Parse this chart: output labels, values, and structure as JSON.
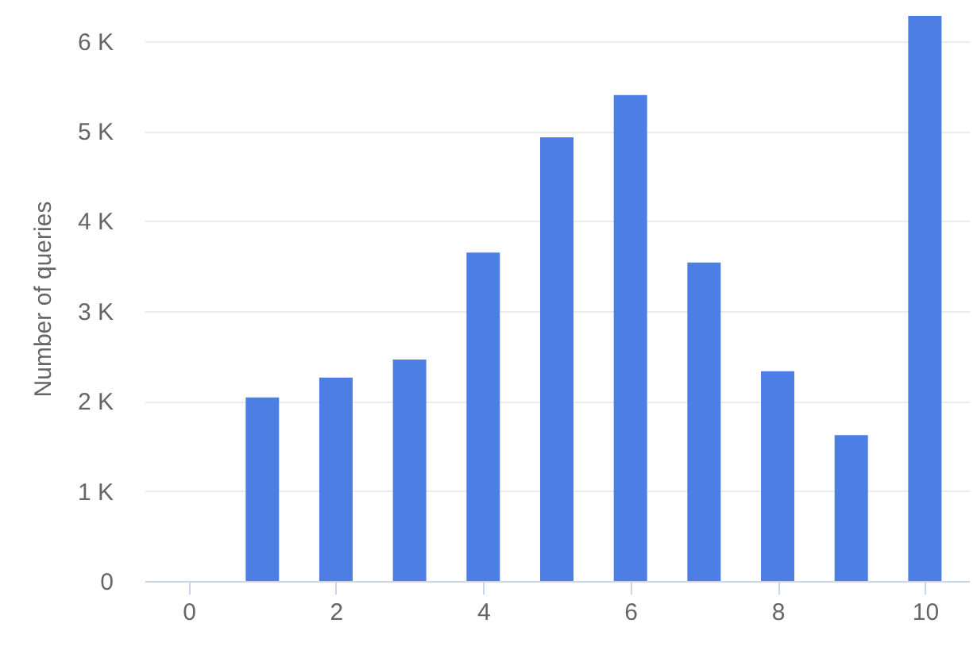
{
  "chart_data": {
    "type": "bar",
    "ylabel": "Number of queries",
    "x": [
      0,
      1,
      2,
      3,
      4,
      5,
      6,
      7,
      8,
      9,
      10
    ],
    "values": [
      0,
      2040,
      2260,
      2460,
      3650,
      4930,
      5400,
      3540,
      2330,
      1620,
      6280
    ],
    "color": "#4d7ee3",
    "xlim": [
      -0.6,
      10.6
    ],
    "xticks": [
      0,
      2,
      4,
      6,
      8,
      10
    ],
    "ylim": [
      0,
      6280
    ],
    "yticks": [
      {
        "value": 0,
        "label": "0"
      },
      {
        "value": 1000,
        "label": "1 K"
      },
      {
        "value": 2000,
        "label": "2 K"
      },
      {
        "value": 3000,
        "label": "3 K"
      },
      {
        "value": 4000,
        "label": "4 K"
      },
      {
        "value": 5000,
        "label": "5 K"
      },
      {
        "value": 6000,
        "label": "6 K"
      }
    ],
    "grid": "y"
  }
}
